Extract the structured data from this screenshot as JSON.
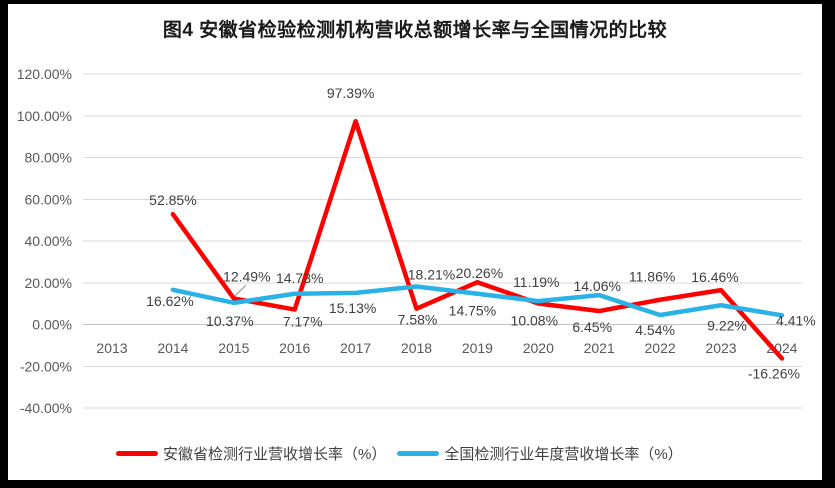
{
  "figure": {
    "title": "图4 安徽省检验检测机构营收总额增长率与全国情况的比较"
  },
  "chart_data": {
    "type": "line",
    "title": "图4 安徽省检验检测机构营收总额增长率与全国情况的比较",
    "x_labels": [
      "2013",
      "2014",
      "2015",
      "2016",
      "2017",
      "2018",
      "2019",
      "2020",
      "2021",
      "2022",
      "2023",
      "2024"
    ],
    "series": [
      {
        "name": "安徽省检测行业营收增长率（%）",
        "color": "#FF0000",
        "values": [
          null,
          52.85,
          12.49,
          7.17,
          97.39,
          7.58,
          20.26,
          10.08,
          6.45,
          11.86,
          16.46,
          -16.26
        ]
      },
      {
        "name": "全国检测行业年度营收增长率（%）",
        "color": "#29B2E6",
        "values": [
          null,
          16.62,
          10.37,
          14.73,
          15.13,
          18.21,
          14.75,
          11.19,
          14.06,
          4.54,
          9.22,
          4.41
        ]
      }
    ],
    "ylim": [
      -40,
      120
    ],
    "ytick_step": 20,
    "ytick_labels": [
      "120.00%",
      "100.00%",
      "80.00%",
      "60.00%",
      "40.00%",
      "20.00%",
      "0.00%",
      "-20.00%",
      "-40.00%"
    ],
    "grid": true,
    "data_labels_shown": true,
    "legend_position": "bottom"
  }
}
